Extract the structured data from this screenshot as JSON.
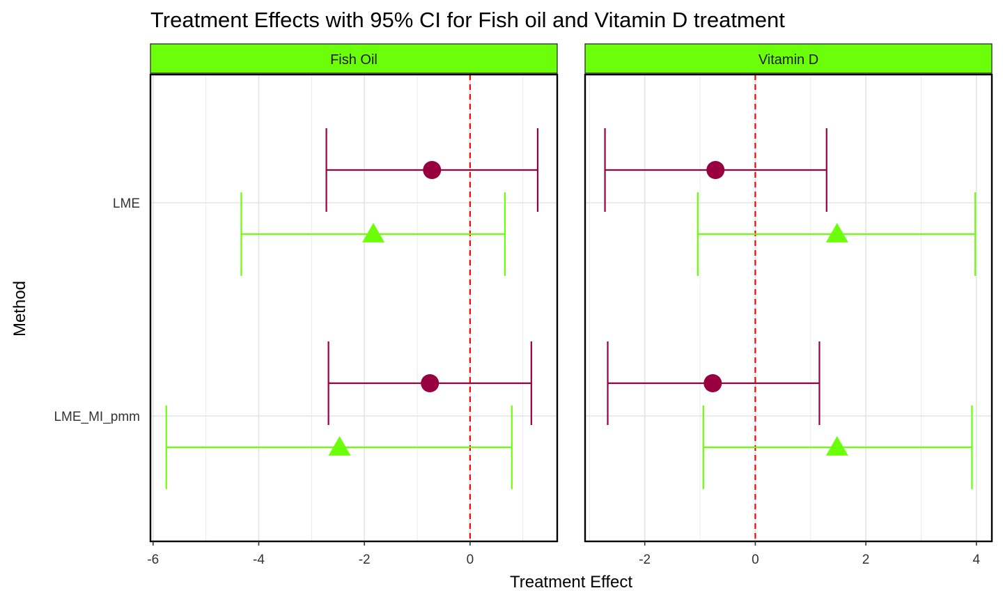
{
  "chart_data": {
    "type": "errorbar",
    "title": "Treatment Effects with 95% CI for Fish oil and Vitamin D treatment",
    "xlabel": "Treatment Effect",
    "ylabel": "Method",
    "categories": [
      "LME",
      "LME_MI_pmm"
    ],
    "grid": true,
    "colors": {
      "circle_series": "#990040",
      "triangle_series": "#6CFF0A",
      "zero_line": "#FF0000",
      "strip_fill": "#6CFF0A"
    },
    "panels": [
      {
        "name": "Fish Oil",
        "xlim": [
          -6.05,
          1.65
        ],
        "xticks": [
          "-6",
          "-4",
          "-2",
          "0"
        ],
        "series": [
          {
            "marker": "circle",
            "points": [
              {
                "method": "LME",
                "estimate": -0.72,
                "lower": -2.72,
                "upper": 1.28
              },
              {
                "method": "LME_MI_pmm",
                "estimate": -0.76,
                "lower": -2.68,
                "upper": 1.16
              }
            ]
          },
          {
            "marker": "triangle",
            "points": [
              {
                "method": "LME",
                "estimate": -1.83,
                "lower": -4.33,
                "upper": 0.66
              },
              {
                "method": "LME_MI_pmm",
                "estimate": -2.47,
                "lower": -5.75,
                "upper": 0.79
              }
            ]
          }
        ]
      },
      {
        "name": "Vitamin D",
        "xlim": [
          -3.08,
          4.28
        ],
        "xticks": [
          "-2",
          "0",
          "2",
          "4"
        ],
        "series": [
          {
            "marker": "circle",
            "points": [
              {
                "method": "LME",
                "estimate": -0.72,
                "lower": -2.72,
                "upper": 1.29
              },
              {
                "method": "LME_MI_pmm",
                "estimate": -0.77,
                "lower": -2.67,
                "upper": 1.16
              }
            ]
          },
          {
            "marker": "triangle",
            "points": [
              {
                "method": "LME",
                "estimate": 1.48,
                "lower": -1.04,
                "upper": 3.98
              },
              {
                "method": "LME_MI_pmm",
                "estimate": 1.48,
                "lower": -0.94,
                "upper": 3.92
              }
            ]
          }
        ]
      }
    ]
  }
}
